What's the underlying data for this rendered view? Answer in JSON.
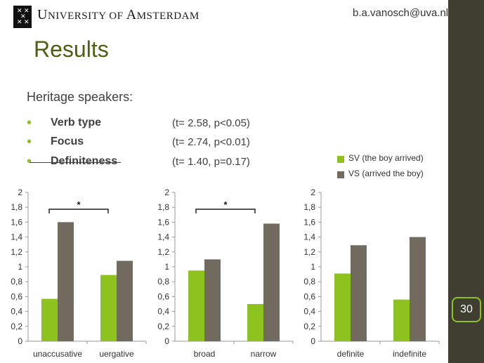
{
  "header": {
    "university_name_part1": "U",
    "university_name_part2": "NIVERSITY OF ",
    "university_name_part3": "A",
    "university_name_part4": "MSTERDAM",
    "email": "b.a.vanosch@uva.nl"
  },
  "slide": {
    "title": "Results",
    "subtitle": "Heritage speakers:",
    "page_number": "30",
    "bullets": [
      {
        "label": "Verb type",
        "stat": "(t= 2.58, p<0.05)",
        "struck": false
      },
      {
        "label": "Focus",
        "stat": "(t= 2.74, p<0.01)",
        "struck": false
      },
      {
        "label": "Definiteness",
        "stat": "(t= 1.40, p=0.17)",
        "struck": true
      }
    ]
  },
  "legend": {
    "items": [
      {
        "label": "SV (the boy arrived)",
        "color": "#8ec31f"
      },
      {
        "label": "VS (arrived the boy)",
        "color": "#716a5e"
      }
    ]
  },
  "colors": {
    "accent_green": "#8ec31f",
    "bar_gray": "#716a5e",
    "title_green": "#4f5e12",
    "sidebar": "#3f3e30"
  },
  "chart_data": [
    {
      "type": "bar",
      "categories": [
        "unaccusative",
        "uergative"
      ],
      "series": [
        {
          "name": "SV (the boy arrived)",
          "values": [
            0.57,
            0.89
          ]
        },
        {
          "name": "VS (arrived the boy)",
          "values": [
            1.6,
            1.08
          ]
        }
      ],
      "ylim": [
        0,
        2
      ],
      "yticks": [
        "0",
        "0,2",
        "0,4",
        "0,6",
        "0,8",
        "1",
        "1,2",
        "1,4",
        "1,6",
        "1,8",
        "2"
      ],
      "annotation": "*"
    },
    {
      "type": "bar",
      "categories": [
        "broad",
        "narrow"
      ],
      "series": [
        {
          "name": "SV (the boy arrived)",
          "values": [
            0.95,
            0.5
          ]
        },
        {
          "name": "VS (arrived the boy)",
          "values": [
            1.1,
            1.58
          ]
        }
      ],
      "ylim": [
        0,
        2
      ],
      "yticks": [
        "0",
        "0,2",
        "0,4",
        "0,6",
        "0,8",
        "1",
        "1,2",
        "1,4",
        "1,6",
        "1,8",
        "2"
      ],
      "annotation": "*"
    },
    {
      "type": "bar",
      "categories": [
        "definite",
        "indefinite"
      ],
      "series": [
        {
          "name": "SV (the boy arrived)",
          "values": [
            0.91,
            0.56
          ]
        },
        {
          "name": "VS (arrived the boy)",
          "values": [
            1.29,
            1.4
          ]
        }
      ],
      "ylim": [
        0,
        2
      ],
      "yticks": [
        "0",
        "0,2",
        "0,4",
        "0,6",
        "0,8",
        "1",
        "1,2",
        "1,4",
        "1,6",
        "1,8",
        "2"
      ],
      "annotation": ""
    }
  ]
}
